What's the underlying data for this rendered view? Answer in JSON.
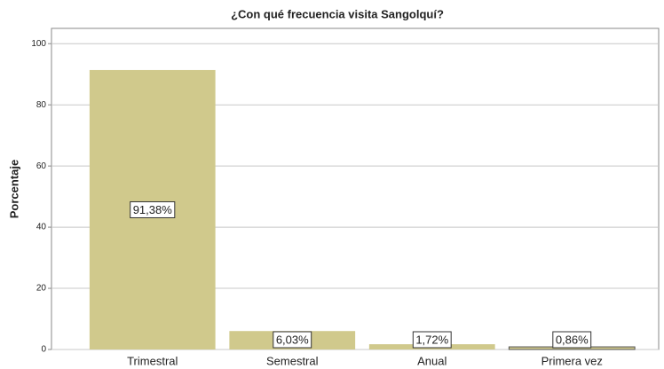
{
  "chart_data": {
    "type": "bar",
    "title": "¿Con qué frecuencia visita Sangolquí?",
    "y_label": "Porcentaje",
    "categories": [
      "Trimestral",
      "Semestral",
      "Anual",
      "Primera vez"
    ],
    "values": [
      91.38,
      6.03,
      1.72,
      0.86
    ],
    "value_labels": [
      "91,38%",
      "6,03%",
      "1,72%",
      "0,86%"
    ],
    "color": "#d0c98c",
    "ylim": [
      0,
      105
    ],
    "yticks": [
      0,
      20,
      40,
      60,
      80,
      100
    ],
    "grid": true
  }
}
